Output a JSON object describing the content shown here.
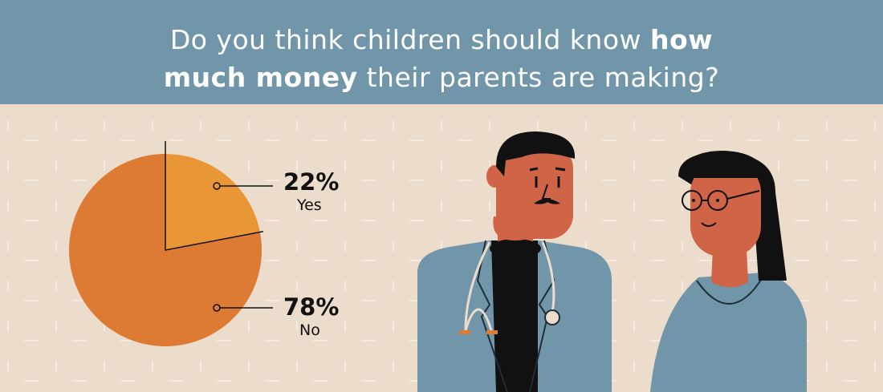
{
  "header": {
    "title_part1": "Do you think children should know ",
    "title_bold1": "how",
    "title_bold2": "much money",
    "title_part2": " their parents are making?",
    "background": "#7196aa"
  },
  "chart_data": {
    "type": "pie",
    "title": "Do you think children should know how much money their parents are making?",
    "categories": [
      "Yes",
      "No"
    ],
    "values": [
      22,
      78
    ],
    "value_labels": [
      "22%",
      "78%"
    ],
    "colors": [
      "#e99636",
      "#dd7a34"
    ]
  },
  "illustration": {
    "figures": [
      "doctor-with-stethoscope",
      "woman-with-glasses"
    ],
    "colors": {
      "coat": "#7196aa",
      "skin": "#cf6446",
      "hair": "#111111",
      "accent": "#dd7a34"
    }
  }
}
